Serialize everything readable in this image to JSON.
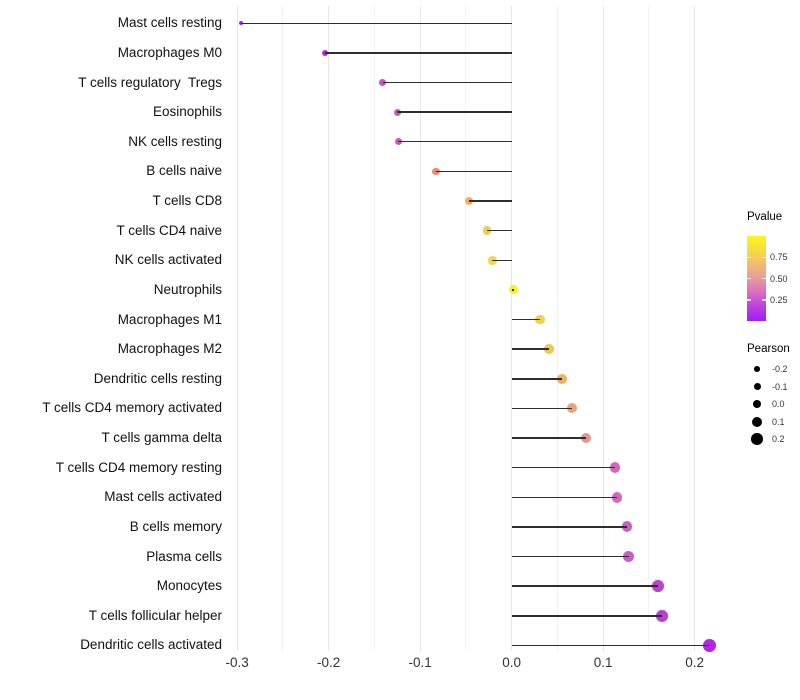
{
  "chart_data": {
    "type": "lollipop",
    "orientation": "horizontal",
    "title": "",
    "xlabel": "",
    "ylabel": "",
    "xlim": [
      -0.31,
      0.245
    ],
    "grid": "on",
    "x_tick_labels": [
      "-0.3",
      "-0.2",
      "-0.1",
      "0.0",
      "0.1",
      "0.2"
    ],
    "x_tick_values": [
      -0.3,
      -0.2,
      -0.1,
      0.0,
      0.1,
      0.2
    ],
    "grid_minor_values": [
      -0.25,
      -0.15,
      -0.05,
      0.05,
      0.15
    ],
    "points": [
      {
        "label": "Mast cells resting",
        "pearson": -0.296,
        "color": "#9B2BD6",
        "size": 4.2
      },
      {
        "label": "Macrophages M0",
        "pearson": -0.204,
        "color": "#A82FD9",
        "size": 6.2
      },
      {
        "label": "T cells regulatory  Tregs",
        "pearson": -0.141,
        "color": "#C356C0",
        "size": 6.8
      },
      {
        "label": "Eosinophils",
        "pearson": -0.125,
        "color": "#C75BBA",
        "size": 7.0
      },
      {
        "label": "NK cells resting",
        "pearson": -0.124,
        "color": "#C75BBA",
        "size": 7.0
      },
      {
        "label": "B cells naive",
        "pearson": -0.083,
        "color": "#E58B72",
        "size": 7.7
      },
      {
        "label": "T cells CD8",
        "pearson": -0.047,
        "color": "#ECB05E",
        "size": 8.2
      },
      {
        "label": "T cells CD4 naive",
        "pearson": -0.027,
        "color": "#F2CC52",
        "size": 8.5
      },
      {
        "label": "NK cells activated",
        "pearson": -0.021,
        "color": "#F4D74A",
        "size": 8.6
      },
      {
        "label": "Neutrophils",
        "pearson": 0.002,
        "color": "#FAF01F",
        "size": 9.0
      },
      {
        "label": "Macrophages M1",
        "pearson": 0.031,
        "color": "#F2D14B",
        "size": 9.4
      },
      {
        "label": "Macrophages M2",
        "pearson": 0.041,
        "color": "#F0C754",
        "size": 9.6
      },
      {
        "label": "Dendritic cells resting",
        "pearson": 0.055,
        "color": "#EDB363",
        "size": 9.8
      },
      {
        "label": "T cells CD4 memory activated",
        "pearson": 0.066,
        "color": "#E9A476",
        "size": 10.0
      },
      {
        "label": "T cells gamma delta",
        "pearson": 0.081,
        "color": "#E4968E",
        "size": 10.2
      },
      {
        "label": "T cells CD4 memory resting",
        "pearson": 0.113,
        "color": "#D169BB",
        "size": 10.7
      },
      {
        "label": "Mast cells activated",
        "pearson": 0.115,
        "color": "#D169BB",
        "size": 10.8
      },
      {
        "label": "B cells memory",
        "pearson": 0.126,
        "color": "#CD5FC3",
        "size": 10.9
      },
      {
        "label": "Plasma cells",
        "pearson": 0.128,
        "color": "#CC5CC5",
        "size": 11.0
      },
      {
        "label": "Monocytes",
        "pearson": 0.16,
        "color": "#BC44CC",
        "size": 11.5
      },
      {
        "label": "T cells follicular helper",
        "pearson": 0.164,
        "color": "#BA40CE",
        "size": 11.6
      },
      {
        "label": "Dendritic cells activated",
        "pearson": 0.216,
        "color": "#AC2BE0",
        "size": 12.4
      }
    ],
    "legend_pvalue": {
      "title": "Pvalue",
      "tick_labels": [
        "0.75",
        "0.50",
        "0.25"
      ],
      "tick_values": [
        0.75,
        0.5,
        0.25
      ],
      "gradient_top_to_bottom": [
        "#FDF51F",
        "#F6DC3F",
        "#F0BC71",
        "#E79A9B",
        "#D96CC1",
        "#BC3EE0",
        "#A21DF5"
      ]
    },
    "legend_pearson": {
      "title": "Pearson",
      "dot_color": "#000000",
      "items": [
        {
          "label": "-0.2",
          "size": 5.6
        },
        {
          "label": "-0.1",
          "size": 7.0
        },
        {
          "label": "0.0",
          "size": 8.4
        },
        {
          "label": "0.1",
          "size": 10.0
        },
        {
          "label": "0.2",
          "size": 11.6
        }
      ]
    },
    "colors": {
      "stem": "#2E2E2E",
      "grid_major": "#E6E6E6",
      "grid_minor": "#F2F2F2",
      "axis_text": "#333333",
      "background": "#FFFFFF"
    }
  }
}
